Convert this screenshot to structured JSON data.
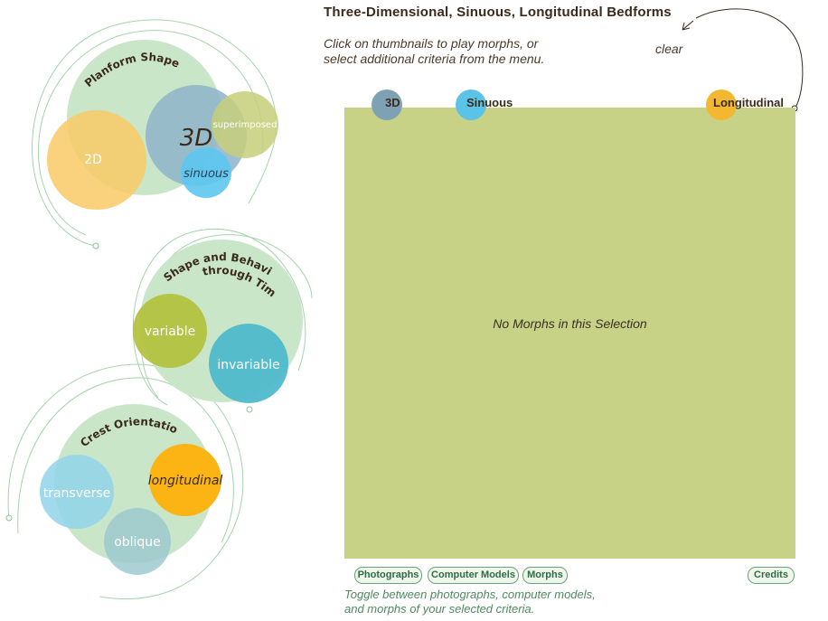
{
  "header": {
    "title": "Three-Dimensional, Sinuous, Longitudinal Bedforms",
    "hint_line1": "Click on thumbnails to play morphs, or",
    "hint_line2": "select additional criteria from the menu.",
    "clear_label": "clear"
  },
  "criteria": [
    {
      "label": "3D",
      "color": "#7fa1b4"
    },
    {
      "label": "Sinuous",
      "color": "#5cc3e8"
    },
    {
      "label": "Longitudinal",
      "color": "#f4b731"
    }
  ],
  "stage": {
    "empty_message": "No Morphs in this Selection",
    "color": "#c7d286"
  },
  "buttons": {
    "photographs": "Photographs",
    "computer_models": "Computer Models",
    "morphs": "Morphs",
    "credits": "Credits"
  },
  "toggle_note": {
    "line1": "Toggle between photographs, computer models,",
    "line2": "and morphs of your selected criteria."
  },
  "menu": {
    "planform": {
      "heading": "Planform Shape",
      "options": {
        "two_d": "2D",
        "three_d": "3D",
        "superimposed": "superimposed",
        "sinuous": "sinuous"
      }
    },
    "behavior": {
      "heading_line1": "Shape and Behavior",
      "heading_line2": "through Time",
      "options": {
        "variable": "variable",
        "invariable": "invariable"
      }
    },
    "crest": {
      "heading": "Crest Orientation",
      "options": {
        "transverse": "transverse",
        "longitudinal": "longitudinal",
        "oblique": "oblique"
      }
    }
  },
  "colors": {
    "menu_group_fill": "#c9e6c8",
    "accent_green": "#6aa37a",
    "two_d": "#f9c966",
    "three_d": "#8fb3c9",
    "superimposed": "#c6cf7a",
    "sinuous": "#5cc8ef",
    "variable": "#b3c240",
    "invariable": "#4fb9cc",
    "transverse": "#92d4ea",
    "longitudinal": "#fbb413",
    "oblique": "#9ec9cf"
  }
}
